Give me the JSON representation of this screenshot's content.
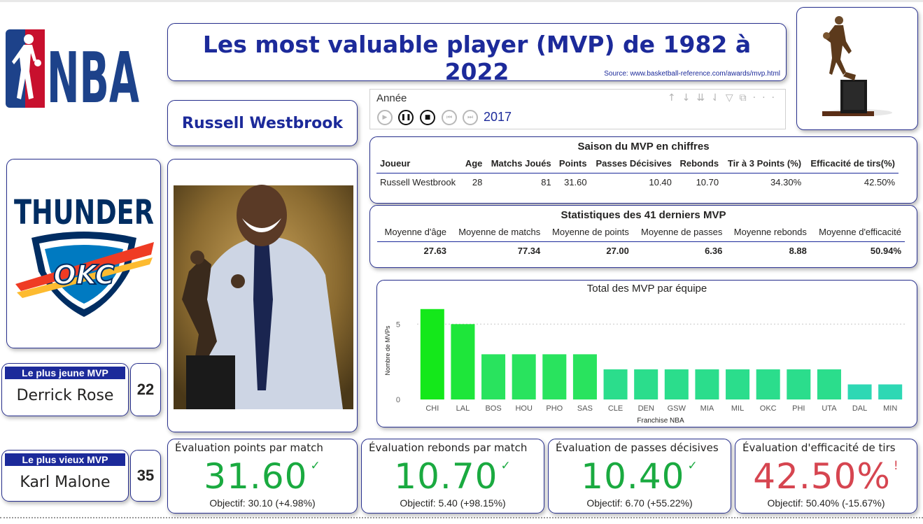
{
  "header": {
    "title": "Les most valuable player (MVP) de 1982 à 2022",
    "source": "Source: www.basketball-reference.com/awards/mvp.html"
  },
  "player": {
    "name": "Russell Westbrook"
  },
  "slicer": {
    "label": "Année",
    "year": "2017"
  },
  "season_table": {
    "title": "Saison du MVP en chiffres",
    "headers": [
      "Joueur",
      "Age",
      "Matchs Joués",
      "Points",
      "Passes Décisives",
      "Rebonds",
      "Tir à 3 Points (%)",
      "Efficacité de tirs(%)"
    ],
    "row": [
      "Russell Westbrook",
      "28",
      "81",
      "31.60",
      "10.40",
      "10.70",
      "34.30%",
      "42.50%"
    ]
  },
  "stats_table": {
    "title": "Statistiques des 41 derniers MVP",
    "headers": [
      "Moyenne d'âge",
      "Moyenne de matchs",
      "Moyenne de points",
      "Moyenne de passes",
      "Moyenne rebonds",
      "Moyenne d'efficacité"
    ],
    "row": [
      "27.63",
      "77.34",
      "27.00",
      "6.36",
      "8.88",
      "50.94%"
    ]
  },
  "chart_data": {
    "type": "bar",
    "title": "Total des MVP par équipe",
    "xlabel": "Franchise NBA",
    "ylabel": "Nombre de MVPs",
    "categories": [
      "CHI",
      "LAL",
      "BOS",
      "HOU",
      "PHO",
      "SAS",
      "CLE",
      "DEN",
      "GSW",
      "MIA",
      "MIL",
      "OKC",
      "PHI",
      "UTA",
      "DAL",
      "MIN"
    ],
    "values": [
      6,
      5,
      3,
      3,
      3,
      3,
      2,
      2,
      2,
      2,
      2,
      2,
      2,
      2,
      1,
      1
    ],
    "yticks": [
      "0",
      "5"
    ],
    "ylim": [
      0,
      6.5
    ],
    "colors": [
      "#14e81a",
      "#1ee63a",
      "#29e35e",
      "#29e35e",
      "#29e35e",
      "#29e35e",
      "#2bdd8c",
      "#2bdd8c",
      "#2bdd8c",
      "#2bdd8c",
      "#2bdd8c",
      "#2bdd8c",
      "#2bdd8c",
      "#2bdd8c",
      "#2ed8b4",
      "#2ed8b4"
    ]
  },
  "youngest": {
    "label": "Le plus jeune MVP",
    "name": "Derrick Rose",
    "age": "22"
  },
  "oldest": {
    "label": "Le plus vieux MVP",
    "name": "Karl Malone",
    "age": "35"
  },
  "kpis": [
    {
      "label": "Évaluation points par match",
      "value": "31.60",
      "mark": "✓",
      "status": "good",
      "goal": "Objectif: 30.10 (+4.98%)"
    },
    {
      "label": "Évaluation rebonds par match",
      "value": "10.70",
      "mark": "✓",
      "status": "good",
      "goal": "Objectif: 5.40 (+98.15%)"
    },
    {
      "label": "Évaluation de passes décisives",
      "value": "10.40",
      "mark": "✓",
      "status": "good",
      "goal": "Objectif: 6.70 (+55.22%)"
    },
    {
      "label": "Évaluation d'efficacité de tirs",
      "value": "42.50%",
      "mark": "!",
      "status": "bad",
      "goal": "Objectif: 50.40% (-15.67%)"
    }
  ],
  "logos": {
    "nba": "NBA",
    "thunder": "THUNDER",
    "okc": "OKC"
  },
  "colors": {
    "brand": "#1c2a9a",
    "good": "#1aaa40",
    "bad": "#d64550"
  }
}
